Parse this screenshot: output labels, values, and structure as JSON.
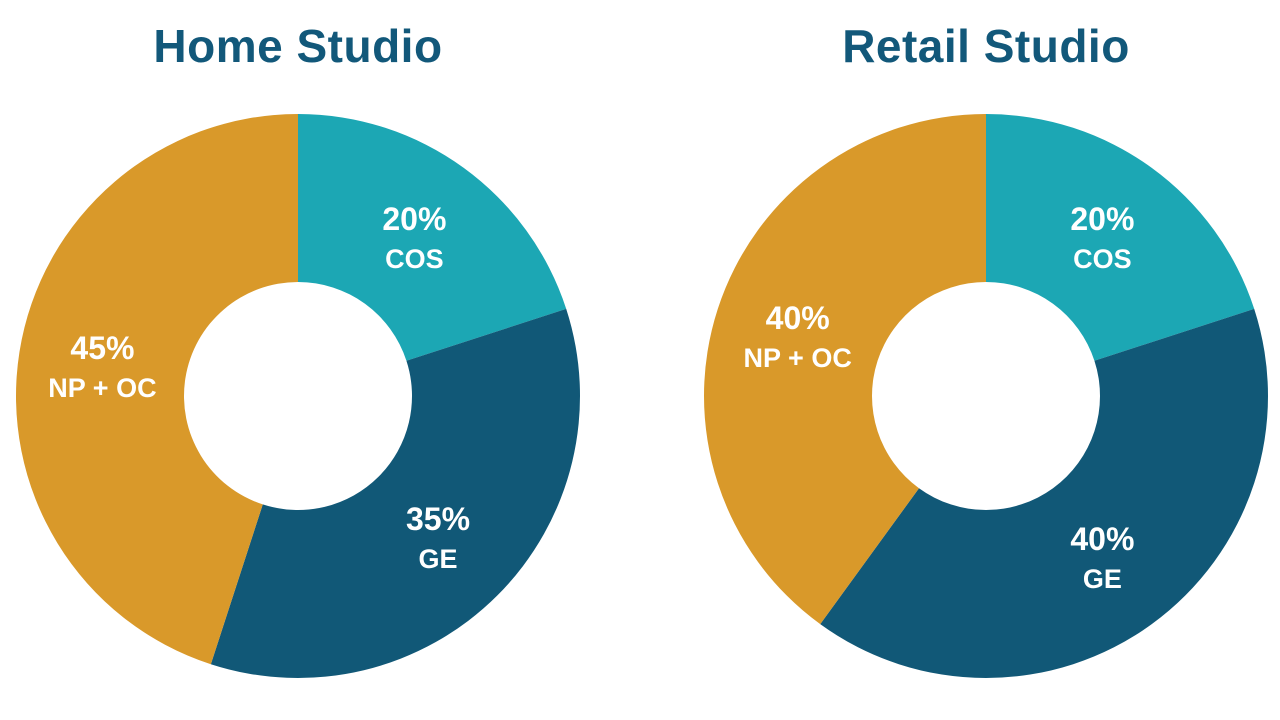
{
  "chart_data": [
    {
      "type": "pie",
      "title": "Home Studio",
      "slices": [
        {
          "label": "COS",
          "value": 20,
          "value_label": "20%",
          "color": "#1ca7b4"
        },
        {
          "label": "GE",
          "value": 35,
          "value_label": "35%",
          "color": "#115877"
        },
        {
          "label": "NP + OC",
          "value": 45,
          "value_label": "45%",
          "color": "#d9992a"
        }
      ]
    },
    {
      "type": "pie",
      "title": "Retail Studio",
      "slices": [
        {
          "label": "COS",
          "value": 20,
          "value_label": "20%",
          "color": "#1ca7b4"
        },
        {
          "label": "GE",
          "value": 40,
          "value_label": "40%",
          "color": "#115877"
        },
        {
          "label": "NP + OC",
          "value": 40,
          "value_label": "40%",
          "color": "#d9992a"
        }
      ]
    }
  ]
}
